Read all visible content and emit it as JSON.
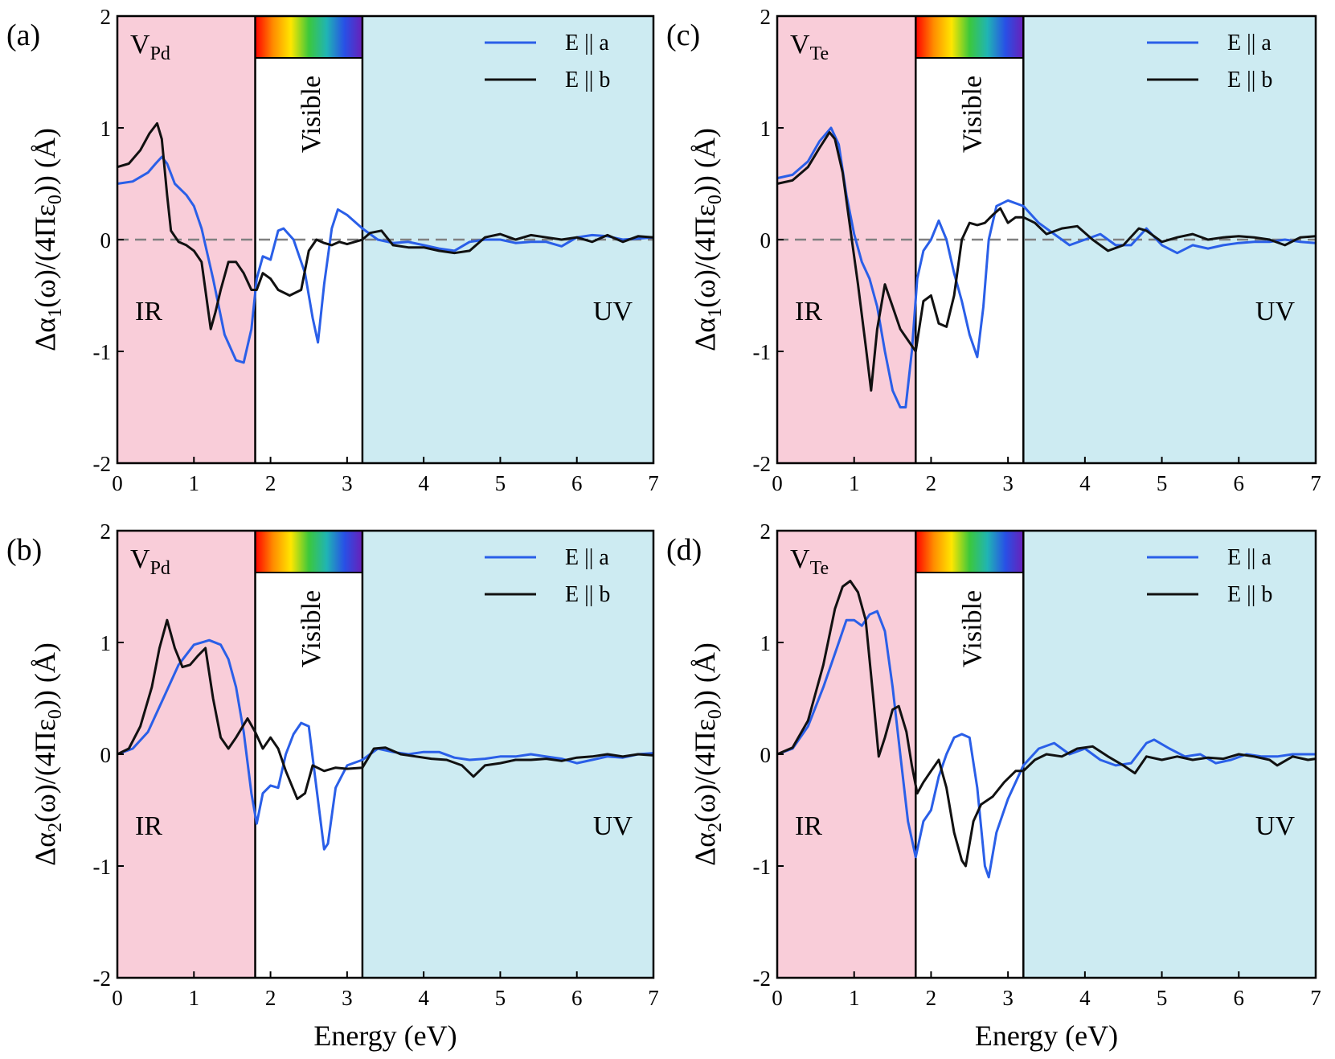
{
  "figure": {
    "colors": {
      "ir_region": "#f9cdd9",
      "uv_region": "#cdebf2",
      "visible_region": "#ffffff",
      "series_a": "#2a5fe8",
      "series_b": "#111111",
      "zero_line": "#808080",
      "spectrum": [
        "#ff0000",
        "#ff8c00",
        "#ffe600",
        "#3cc83c",
        "#20b4b4",
        "#2850e6",
        "#6a1fb8"
      ]
    }
  },
  "chart_data": [
    {
      "id": "a",
      "type": "line",
      "panel_label": "(a)",
      "defect": {
        "main": "V",
        "sub": "Pd"
      },
      "ylabel": {
        "prefix": "Δα",
        "sub1": "1",
        "mid": "(ω)/(4Πε",
        "sub2": "0",
        "suffix": ")) (Å)"
      },
      "xlabel": "",
      "xlim": [
        0,
        7
      ],
      "ylim": [
        -2,
        2
      ],
      "xticks": [
        "0",
        "1",
        "2",
        "3",
        "4",
        "5",
        "6",
        "7"
      ],
      "yticks": [
        "-2",
        "-1",
        "0",
        "1",
        "2"
      ],
      "regions": {
        "ir": [
          0,
          1.8
        ],
        "visible": [
          1.8,
          3.2
        ],
        "uv": [
          3.2,
          7
        ],
        "ir_label": "IR",
        "visible_label": "Visible",
        "uv_label": "UV"
      },
      "zero_line": true,
      "series": [
        {
          "name": "E || a",
          "key": "a",
          "x": [
            0,
            0.2,
            0.4,
            0.5,
            0.58,
            0.65,
            0.75,
            0.9,
            1.0,
            1.1,
            1.25,
            1.4,
            1.55,
            1.65,
            1.75,
            1.82,
            1.9,
            2.0,
            2.1,
            2.17,
            2.3,
            2.45,
            2.55,
            2.62,
            2.7,
            2.8,
            2.88,
            3.0,
            3.2,
            3.4,
            3.6,
            3.8,
            4.0,
            4.2,
            4.4,
            4.6,
            4.8,
            5.0,
            5.2,
            5.4,
            5.6,
            5.8,
            6.0,
            6.2,
            6.4,
            6.6,
            6.8,
            7.0
          ],
          "y": [
            0.5,
            0.52,
            0.6,
            0.68,
            0.74,
            0.68,
            0.5,
            0.4,
            0.3,
            0.1,
            -0.35,
            -0.85,
            -1.08,
            -1.1,
            -0.8,
            -0.35,
            -0.15,
            -0.18,
            0.08,
            0.1,
            0.0,
            -0.3,
            -0.7,
            -0.92,
            -0.4,
            0.1,
            0.27,
            0.22,
            0.1,
            0.0,
            -0.03,
            -0.02,
            -0.05,
            -0.08,
            -0.1,
            -0.02,
            0.0,
            0.0,
            -0.03,
            -0.02,
            -0.02,
            -0.06,
            0.02,
            0.04,
            0.03,
            0.0,
            0.01,
            0.02
          ]
        },
        {
          "name": "E || b",
          "key": "b",
          "x": [
            0,
            0.15,
            0.3,
            0.42,
            0.52,
            0.58,
            0.65,
            0.7,
            0.8,
            0.9,
            1.0,
            1.1,
            1.22,
            1.28,
            1.35,
            1.45,
            1.55,
            1.65,
            1.75,
            1.82,
            1.9,
            2.0,
            2.1,
            2.25,
            2.4,
            2.5,
            2.6,
            2.7,
            2.8,
            2.9,
            3.0,
            3.1,
            3.2,
            3.3,
            3.45,
            3.6,
            3.8,
            4.0,
            4.2,
            4.4,
            4.6,
            4.8,
            5.0,
            5.2,
            5.4,
            5.6,
            5.8,
            6.0,
            6.2,
            6.4,
            6.6,
            6.8,
            7.0
          ],
          "y": [
            0.65,
            0.68,
            0.8,
            0.95,
            1.04,
            0.9,
            0.4,
            0.08,
            -0.02,
            -0.05,
            -0.1,
            -0.2,
            -0.8,
            -0.65,
            -0.45,
            -0.2,
            -0.2,
            -0.3,
            -0.45,
            -0.45,
            -0.3,
            -0.35,
            -0.45,
            -0.5,
            -0.45,
            -0.1,
            0.0,
            -0.03,
            -0.05,
            -0.02,
            -0.04,
            -0.02,
            0.0,
            0.06,
            0.08,
            -0.05,
            -0.07,
            -0.07,
            -0.1,
            -0.12,
            -0.1,
            0.02,
            0.05,
            0.0,
            0.04,
            0.02,
            0.0,
            0.02,
            -0.02,
            0.04,
            -0.02,
            0.03,
            0.02
          ]
        }
      ]
    },
    {
      "id": "b",
      "type": "line",
      "panel_label": "(b)",
      "defect": {
        "main": "V",
        "sub": "Pd"
      },
      "ylabel": {
        "prefix": "Δα",
        "sub1": "2",
        "mid": "(ω)/(4Πε",
        "sub2": "0",
        "suffix": ")) (Å)"
      },
      "xlabel": "Energy (eV)",
      "xlim": [
        0,
        7
      ],
      "ylim": [
        -2,
        2
      ],
      "xticks": [
        "0",
        "1",
        "2",
        "3",
        "4",
        "5",
        "6",
        "7"
      ],
      "yticks": [
        "-2",
        "-1",
        "0",
        "1",
        "2"
      ],
      "regions": {
        "ir": [
          0,
          1.8
        ],
        "visible": [
          1.8,
          3.2
        ],
        "uv": [
          3.2,
          7
        ],
        "ir_label": "IR",
        "visible_label": "Visible",
        "uv_label": "UV"
      },
      "zero_line": false,
      "series": [
        {
          "name": "E || a",
          "key": "a",
          "x": [
            0,
            0.2,
            0.4,
            0.6,
            0.8,
            1.0,
            1.2,
            1.35,
            1.45,
            1.55,
            1.65,
            1.75,
            1.82,
            1.9,
            2.0,
            2.1,
            2.2,
            2.3,
            2.4,
            2.5,
            2.6,
            2.7,
            2.75,
            2.85,
            3.0,
            3.2,
            3.4,
            3.6,
            3.8,
            4.0,
            4.2,
            4.4,
            4.6,
            4.8,
            5.0,
            5.2,
            5.4,
            5.6,
            5.8,
            6.0,
            6.2,
            6.4,
            6.6,
            6.8,
            7.0
          ],
          "y": [
            0.0,
            0.05,
            0.2,
            0.5,
            0.8,
            0.98,
            1.02,
            0.98,
            0.85,
            0.6,
            0.2,
            -0.35,
            -0.62,
            -0.35,
            -0.28,
            -0.3,
            0.0,
            0.18,
            0.28,
            0.25,
            -0.3,
            -0.85,
            -0.8,
            -0.3,
            -0.1,
            -0.05,
            0.05,
            0.02,
            0.0,
            0.02,
            0.02,
            -0.03,
            -0.05,
            -0.04,
            -0.02,
            -0.02,
            0.0,
            -0.02,
            -0.04,
            -0.08,
            -0.05,
            -0.02,
            -0.03,
            0.0,
            0.01
          ]
        },
        {
          "name": "E || b",
          "key": "b",
          "x": [
            0,
            0.15,
            0.3,
            0.45,
            0.55,
            0.65,
            0.75,
            0.85,
            0.95,
            1.05,
            1.15,
            1.25,
            1.35,
            1.45,
            1.55,
            1.7,
            1.8,
            1.9,
            2.0,
            2.1,
            2.2,
            2.35,
            2.45,
            2.55,
            2.7,
            2.85,
            3.0,
            3.2,
            3.35,
            3.5,
            3.7,
            3.9,
            4.1,
            4.3,
            4.5,
            4.65,
            4.8,
            5.0,
            5.2,
            5.4,
            5.6,
            5.8,
            6.0,
            6.2,
            6.4,
            6.6,
            6.8,
            7.0
          ],
          "y": [
            0.0,
            0.05,
            0.25,
            0.6,
            0.95,
            1.2,
            0.95,
            0.78,
            0.8,
            0.88,
            0.95,
            0.5,
            0.15,
            0.05,
            0.15,
            0.32,
            0.2,
            0.05,
            0.15,
            0.05,
            -0.15,
            -0.4,
            -0.35,
            -0.1,
            -0.15,
            -0.12,
            -0.13,
            -0.12,
            0.05,
            0.06,
            0.0,
            -0.02,
            -0.04,
            -0.05,
            -0.1,
            -0.2,
            -0.1,
            -0.08,
            -0.05,
            -0.05,
            -0.04,
            -0.06,
            -0.03,
            -0.02,
            0.0,
            -0.02,
            0.0,
            -0.01
          ]
        }
      ]
    },
    {
      "id": "c",
      "type": "line",
      "panel_label": "(c)",
      "defect": {
        "main": "V",
        "sub": "Te"
      },
      "ylabel": {
        "prefix": "Δα",
        "sub1": "1",
        "mid": "(ω)/(4Πε",
        "sub2": "0",
        "suffix": ")) (Å)"
      },
      "xlabel": "",
      "xlim": [
        0,
        7
      ],
      "ylim": [
        -2,
        2
      ],
      "xticks": [
        "0",
        "1",
        "2",
        "3",
        "4",
        "5",
        "6",
        "7"
      ],
      "yticks": [
        "-2",
        "-1",
        "0",
        "1",
        "2"
      ],
      "regions": {
        "ir": [
          0,
          1.8
        ],
        "visible": [
          1.8,
          3.2
        ],
        "uv": [
          3.2,
          7
        ],
        "ir_label": "IR",
        "visible_label": "Visible",
        "uv_label": "UV"
      },
      "zero_line": true,
      "series": [
        {
          "name": "E || a",
          "key": "a",
          "x": [
            0,
            0.2,
            0.4,
            0.55,
            0.7,
            0.8,
            0.9,
            1.0,
            1.1,
            1.2,
            1.3,
            1.4,
            1.5,
            1.6,
            1.67,
            1.75,
            1.82,
            1.9,
            2.0,
            2.1,
            2.2,
            2.3,
            2.4,
            2.5,
            2.6,
            2.68,
            2.75,
            2.85,
            3.0,
            3.2,
            3.4,
            3.6,
            3.8,
            4.0,
            4.2,
            4.4,
            4.6,
            4.8,
            5.0,
            5.2,
            5.4,
            5.6,
            5.8,
            6.0,
            6.2,
            6.4,
            6.6,
            6.8,
            7.0
          ],
          "y": [
            0.55,
            0.58,
            0.7,
            0.88,
            1.0,
            0.85,
            0.4,
            0.05,
            -0.2,
            -0.35,
            -0.6,
            -1.0,
            -1.35,
            -1.5,
            -1.5,
            -1.0,
            -0.35,
            -0.1,
            0.0,
            0.17,
            0.0,
            -0.3,
            -0.55,
            -0.85,
            -1.05,
            -0.6,
            0.0,
            0.3,
            0.35,
            0.3,
            0.15,
            0.05,
            -0.05,
            0.0,
            0.05,
            -0.05,
            -0.05,
            0.1,
            -0.05,
            -0.12,
            -0.05,
            -0.08,
            -0.05,
            -0.03,
            -0.02,
            -0.02,
            0.0,
            -0.02,
            -0.03
          ]
        },
        {
          "name": "E || b",
          "key": "b",
          "x": [
            0,
            0.2,
            0.4,
            0.55,
            0.68,
            0.75,
            0.85,
            0.95,
            1.05,
            1.15,
            1.22,
            1.3,
            1.4,
            1.5,
            1.6,
            1.7,
            1.8,
            1.9,
            2.0,
            2.1,
            2.2,
            2.3,
            2.4,
            2.5,
            2.6,
            2.7,
            2.8,
            2.9,
            3.0,
            3.1,
            3.2,
            3.35,
            3.5,
            3.7,
            3.9,
            4.1,
            4.3,
            4.5,
            4.7,
            4.8,
            5.0,
            5.2,
            5.4,
            5.6,
            5.8,
            6.0,
            6.2,
            6.4,
            6.6,
            6.8,
            7.0
          ],
          "y": [
            0.5,
            0.53,
            0.65,
            0.82,
            0.96,
            0.9,
            0.6,
            0.1,
            -0.4,
            -0.95,
            -1.35,
            -0.8,
            -0.4,
            -0.6,
            -0.8,
            -0.9,
            -1.0,
            -0.55,
            -0.5,
            -0.75,
            -0.78,
            -0.5,
            0.0,
            0.15,
            0.13,
            0.15,
            0.22,
            0.28,
            0.15,
            0.2,
            0.2,
            0.15,
            0.05,
            0.1,
            0.12,
            0.0,
            -0.1,
            -0.05,
            0.1,
            0.08,
            -0.02,
            0.02,
            0.05,
            0.0,
            0.02,
            0.03,
            0.02,
            0.0,
            -0.05,
            0.02,
            0.03
          ]
        }
      ]
    },
    {
      "id": "d",
      "type": "line",
      "panel_label": "(d)",
      "defect": {
        "main": "V",
        "sub": "Te"
      },
      "ylabel": {
        "prefix": "Δα",
        "sub1": "2",
        "mid": "(ω)/(4Πε",
        "sub2": "0",
        "suffix": ")) (Å)"
      },
      "xlabel": "Energy (eV)",
      "xlim": [
        0,
        7
      ],
      "ylim": [
        -2,
        2
      ],
      "xticks": [
        "0",
        "1",
        "2",
        "3",
        "4",
        "5",
        "6",
        "7"
      ],
      "yticks": [
        "-2",
        "-1",
        "0",
        "1",
        "2"
      ],
      "regions": {
        "ir": [
          0,
          1.8
        ],
        "visible": [
          1.8,
          3.2
        ],
        "uv": [
          3.2,
          7
        ],
        "ir_label": "IR",
        "visible_label": "Visible",
        "uv_label": "UV"
      },
      "zero_line": false,
      "series": [
        {
          "name": "E || a",
          "key": "a",
          "x": [
            0,
            0.2,
            0.4,
            0.6,
            0.8,
            0.9,
            1.0,
            1.1,
            1.2,
            1.3,
            1.4,
            1.5,
            1.6,
            1.7,
            1.8,
            1.9,
            2.0,
            2.1,
            2.2,
            2.3,
            2.4,
            2.5,
            2.6,
            2.7,
            2.75,
            2.85,
            3.0,
            3.2,
            3.4,
            3.6,
            3.8,
            4.0,
            4.2,
            4.4,
            4.6,
            4.8,
            4.9,
            5.1,
            5.3,
            5.5,
            5.7,
            5.9,
            6.1,
            6.3,
            6.5,
            6.7,
            6.9,
            7.0
          ],
          "y": [
            0.0,
            0.05,
            0.25,
            0.6,
            1.0,
            1.2,
            1.2,
            1.15,
            1.25,
            1.28,
            1.1,
            0.6,
            0.0,
            -0.6,
            -0.92,
            -0.6,
            -0.5,
            -0.2,
            0.0,
            0.15,
            0.18,
            0.15,
            -0.3,
            -1.0,
            -1.1,
            -0.7,
            -0.4,
            -0.1,
            0.05,
            0.1,
            0.0,
            0.05,
            -0.05,
            -0.1,
            -0.08,
            0.1,
            0.13,
            0.05,
            -0.02,
            0.0,
            -0.08,
            -0.05,
            0.0,
            -0.02,
            -0.02,
            0.0,
            0.0,
            0.0
          ]
        },
        {
          "name": "E || b",
          "key": "b",
          "x": [
            0,
            0.2,
            0.4,
            0.6,
            0.75,
            0.85,
            0.95,
            1.05,
            1.15,
            1.25,
            1.32,
            1.4,
            1.5,
            1.58,
            1.68,
            1.75,
            1.82,
            1.9,
            2.0,
            2.1,
            2.2,
            2.3,
            2.4,
            2.45,
            2.55,
            2.65,
            2.8,
            2.95,
            3.1,
            3.2,
            3.35,
            3.5,
            3.7,
            3.9,
            4.1,
            4.3,
            4.5,
            4.65,
            4.8,
            5.0,
            5.2,
            5.4,
            5.6,
            5.8,
            6.0,
            6.2,
            6.4,
            6.5,
            6.7,
            6.9,
            7.0
          ],
          "y": [
            0.0,
            0.06,
            0.3,
            0.8,
            1.3,
            1.5,
            1.55,
            1.45,
            1.2,
            0.5,
            -0.02,
            0.15,
            0.4,
            0.43,
            0.2,
            -0.1,
            -0.35,
            -0.25,
            -0.15,
            -0.05,
            -0.3,
            -0.7,
            -0.95,
            -1.0,
            -0.6,
            -0.45,
            -0.38,
            -0.25,
            -0.15,
            -0.15,
            -0.05,
            0.0,
            -0.02,
            0.05,
            0.07,
            -0.02,
            -0.1,
            -0.17,
            -0.02,
            -0.05,
            -0.02,
            -0.05,
            -0.03,
            -0.04,
            0.0,
            -0.02,
            -0.05,
            -0.1,
            -0.02,
            -0.05,
            -0.04
          ]
        }
      ]
    }
  ]
}
